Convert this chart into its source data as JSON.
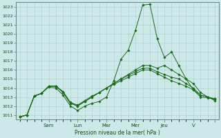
{
  "bg_color": "#cce8e8",
  "grid_color": "#aacccc",
  "line_color": "#1a6b1a",
  "marker_color": "#1a6b1a",
  "xlabel": "Pression niveau de la mer( hPa )",
  "ylim_min": 1010.5,
  "ylim_max": 1023.5,
  "yticks": [
    1011,
    1012,
    1013,
    1014,
    1015,
    1016,
    1017,
    1018,
    1019,
    1020,
    1021,
    1022,
    1023
  ],
  "series": [
    [
      1010.8,
      1011.0,
      1013.1,
      1013.4,
      1014.1,
      1014.0,
      1013.2,
      1012.0,
      1011.5,
      1012.0,
      1012.3,
      1012.5,
      1013.0,
      1014.8,
      1017.2,
      1018.2,
      1020.4,
      1023.2,
      1023.3,
      1019.5,
      1017.4,
      1018.0,
      1016.5,
      1015.0,
      1013.8,
      1013.0,
      1012.9,
      1012.8
    ],
    [
      1010.8,
      1011.0,
      1013.1,
      1013.4,
      1014.2,
      1014.2,
      1013.5,
      1012.3,
      1012.0,
      1012.5,
      1013.0,
      1013.5,
      1014.0,
      1014.5,
      1015.0,
      1015.5,
      1016.0,
      1016.5,
      1016.5,
      1016.2,
      1016.5,
      1016.0,
      1015.5,
      1015.0,
      1014.5,
      1013.5,
      1013.0,
      1012.8
    ],
    [
      1010.8,
      1011.0,
      1013.1,
      1013.4,
      1014.2,
      1014.2,
      1013.5,
      1012.3,
      1012.0,
      1012.5,
      1013.0,
      1013.5,
      1014.0,
      1014.5,
      1015.0,
      1015.4,
      1015.8,
      1016.2,
      1016.2,
      1015.8,
      1015.5,
      1015.2,
      1015.0,
      1014.5,
      1014.0,
      1013.2,
      1013.0,
      1012.7
    ],
    [
      1010.8,
      1011.0,
      1013.1,
      1013.4,
      1014.2,
      1014.2,
      1013.6,
      1012.4,
      1012.1,
      1012.6,
      1013.1,
      1013.5,
      1014.0,
      1014.4,
      1014.8,
      1015.2,
      1015.6,
      1016.0,
      1016.0,
      1015.6,
      1015.2,
      1014.8,
      1014.5,
      1014.2,
      1013.8,
      1013.2,
      1013.0,
      1012.6
    ]
  ],
  "n_points": 28,
  "day_tick_positions": [
    4,
    8,
    12,
    16,
    20,
    24,
    27
  ],
  "day_tick_labels": [
    "Sam",
    "Lun",
    "Mar",
    "Mer",
    "Jeu",
    "V",
    ""
  ],
  "minor_tick_interval": 1
}
